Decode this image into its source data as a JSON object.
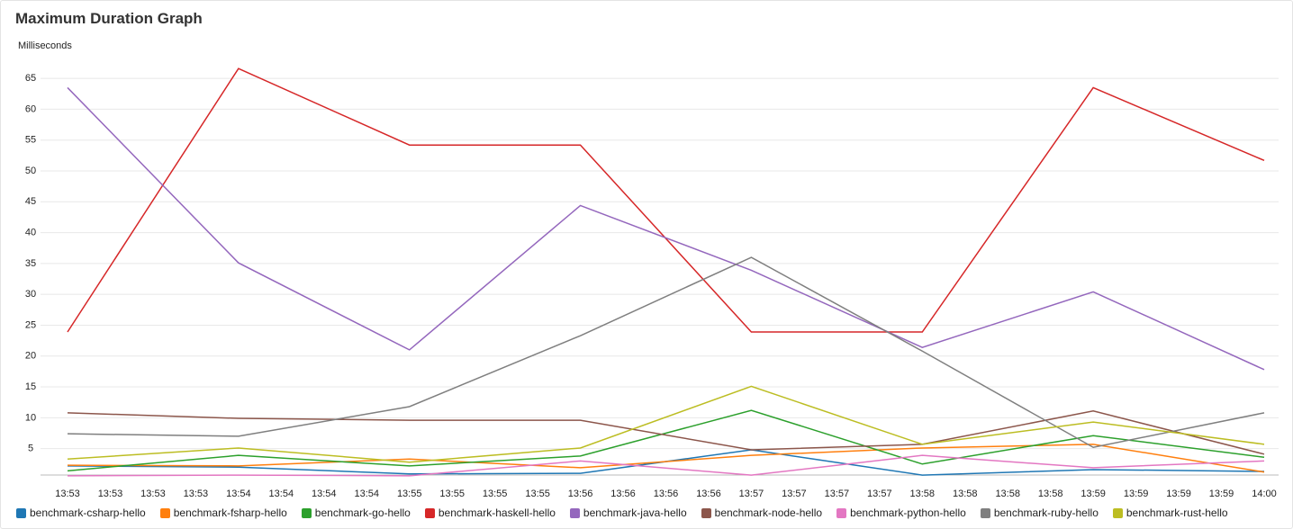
{
  "chart_data": {
    "type": "line",
    "title": "Maximum Duration Graph",
    "y_label": "Milliseconds",
    "xticks": [
      "13:53",
      "13:53",
      "13:53",
      "13:53",
      "13:54",
      "13:54",
      "13:54",
      "13:54",
      "13:55",
      "13:55",
      "13:55",
      "13:55",
      "13:56",
      "13:56",
      "13:56",
      "13:56",
      "13:57",
      "13:57",
      "13:57",
      "13:57",
      "13:58",
      "13:58",
      "13:58",
      "13:58",
      "13:59",
      "13:59",
      "13:59",
      "13:59",
      "14:00"
    ],
    "ylim": [
      0.5,
      67.5
    ],
    "yticks": [
      5,
      10,
      15,
      20,
      25,
      30,
      35,
      40,
      45,
      50,
      55,
      60,
      65
    ],
    "grid": true,
    "legend": "bottom",
    "series": [
      {
        "name": "benchmark-csharp-hello",
        "color": "#1f77b4",
        "values": [
          2.2,
          2.0,
          0.9,
          1.0,
          4.8,
          0.7,
          1.6,
          1.3
        ]
      },
      {
        "name": "benchmark-fsharp-hello",
        "color": "#ff7f0e",
        "values": [
          2.3,
          2.2,
          3.3,
          1.9,
          3.9,
          5.1,
          5.7,
          1.2
        ]
      },
      {
        "name": "benchmark-go-hello",
        "color": "#2ca02c",
        "values": [
          1.4,
          3.9,
          2.2,
          3.8,
          11.2,
          2.5,
          7.1,
          3.6
        ]
      },
      {
        "name": "benchmark-haskell-hello",
        "color": "#d62728",
        "values": [
          23.9,
          66.6,
          54.2,
          54.2,
          23.9,
          23.9,
          63.5,
          51.7
        ]
      },
      {
        "name": "benchmark-java-hello",
        "color": "#9467bd",
        "values": [
          63.5,
          35.1,
          21.0,
          44.4,
          33.9,
          21.4,
          30.4,
          17.8
        ]
      },
      {
        "name": "benchmark-node-hello",
        "color": "#8c564b",
        "values": [
          10.8,
          9.9,
          9.6,
          9.6,
          4.8,
          5.7,
          11.1,
          4.1
        ]
      },
      {
        "name": "benchmark-python-hello",
        "color": "#e377c2",
        "values": [
          0.6,
          0.7,
          0.6,
          3.0,
          0.7,
          3.9,
          1.9,
          3.0
        ]
      },
      {
        "name": "benchmark-ruby-hello",
        "color": "#7f7f7f",
        "values": [
          7.4,
          7.0,
          11.8,
          23.3,
          36.0,
          20.8,
          5.2,
          10.8
        ]
      },
      {
        "name": "benchmark-rust-hello",
        "color": "#bcbd22",
        "values": [
          3.3,
          5.1,
          2.8,
          5.1,
          15.1,
          5.7,
          9.3,
          5.7
        ]
      }
    ]
  }
}
